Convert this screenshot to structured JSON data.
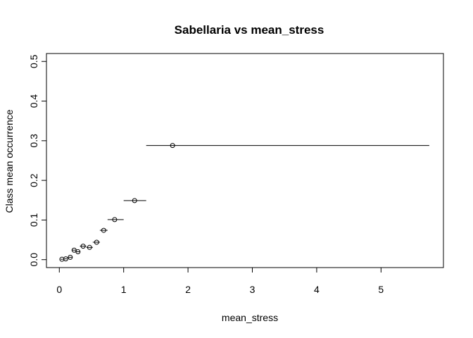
{
  "chart_data": {
    "type": "scatter",
    "title": "Sabellaria vs mean_stress",
    "xlabel": "mean_stress",
    "ylabel": "Class mean occurrence",
    "xlim": [
      -0.2,
      5.97
    ],
    "ylim": [
      -0.02,
      0.52
    ],
    "xticks": [
      0,
      1,
      2,
      3,
      4,
      5
    ],
    "xtick_labels": [
      "0",
      "1",
      "2",
      "3",
      "4",
      "5"
    ],
    "yticks": [
      0.0,
      0.1,
      0.2,
      0.3,
      0.4,
      0.5
    ],
    "ytick_labels": [
      "0.0",
      "0.1",
      "0.2",
      "0.3",
      "0.4",
      "0.5"
    ],
    "grid": false,
    "legend": "none",
    "points": [
      {
        "x": 0.04,
        "y": 0.001,
        "x_low": 0.02,
        "x_high": 0.06
      },
      {
        "x": 0.1,
        "y": 0.002,
        "x_low": 0.08,
        "x_high": 0.12
      },
      {
        "x": 0.17,
        "y": 0.006,
        "x_low": 0.14,
        "x_high": 0.2
      },
      {
        "x": 0.23,
        "y": 0.024,
        "x_low": 0.2,
        "x_high": 0.26
      },
      {
        "x": 0.29,
        "y": 0.02,
        "x_low": 0.26,
        "x_high": 0.32
      },
      {
        "x": 0.37,
        "y": 0.034,
        "x_low": 0.32,
        "x_high": 0.42
      },
      {
        "x": 0.47,
        "y": 0.031,
        "x_low": 0.42,
        "x_high": 0.52
      },
      {
        "x": 0.58,
        "y": 0.044,
        "x_low": 0.52,
        "x_high": 0.63
      },
      {
        "x": 0.69,
        "y": 0.074,
        "x_low": 0.63,
        "x_high": 0.75
      },
      {
        "x": 0.86,
        "y": 0.101,
        "x_low": 0.75,
        "x_high": 1.0
      },
      {
        "x": 1.17,
        "y": 0.149,
        "x_low": 1.0,
        "x_high": 1.35
      },
      {
        "x": 1.76,
        "y": 0.288,
        "x_low": 1.35,
        "x_high": 5.75
      }
    ]
  }
}
